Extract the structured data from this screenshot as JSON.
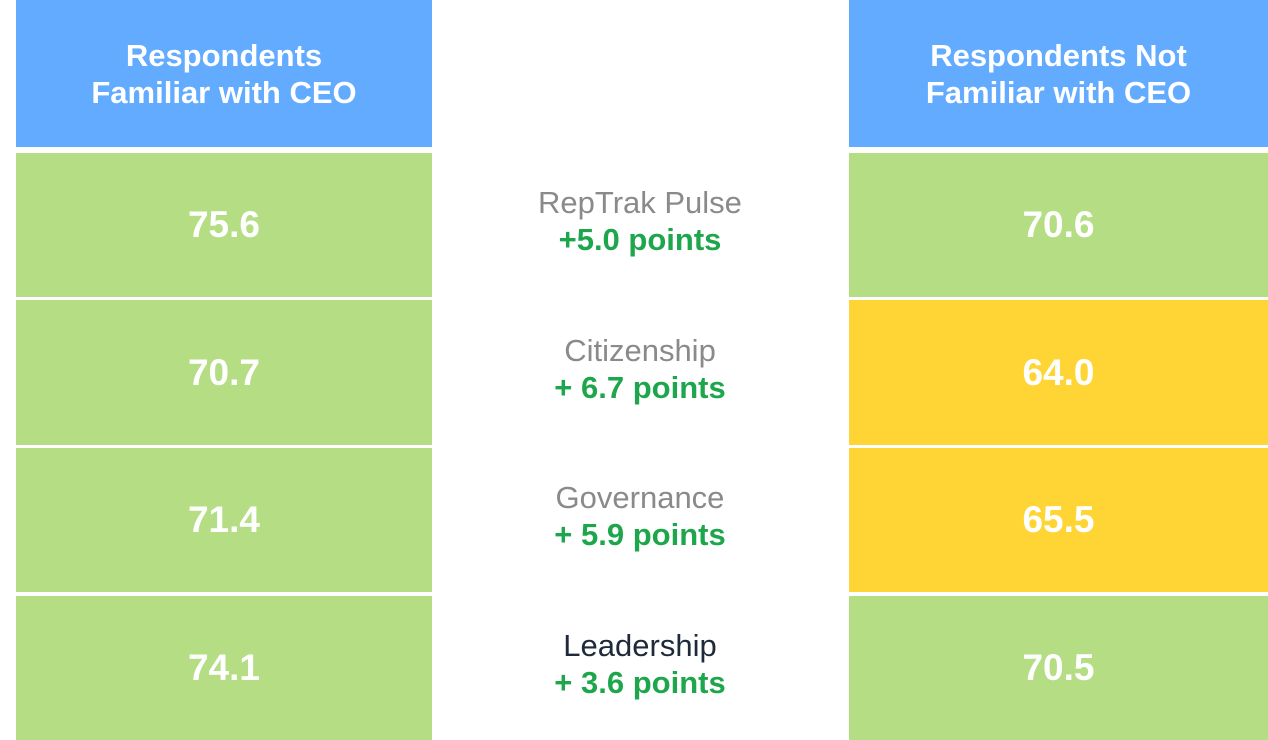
{
  "headers": {
    "left": [
      "Respondents",
      "Familiar with CEO"
    ],
    "right": [
      "Respondents Not",
      "Familiar with CEO"
    ],
    "color": "#62abff"
  },
  "rows": [
    {
      "left": "75.6",
      "left_color": "#b5de84",
      "metric": "RepTrak Pulse",
      "metric_color": "#8a8a8a",
      "change": "+5.0 points",
      "right": "70.6",
      "right_color": "#b5de84"
    },
    {
      "left": "70.7",
      "left_color": "#b5de84",
      "metric": "Citizenship",
      "metric_color": "#8a8a8a",
      "change": "+ 6.7 points",
      "right": "64.0",
      "right_color": "#ffd535"
    },
    {
      "left": "71.4",
      "left_color": "#b5de84",
      "metric": "Governance",
      "metric_color": "#8a8a8a",
      "change": "+ 5.9 points",
      "right": "65.5",
      "right_color": "#ffd535"
    },
    {
      "left": "74.1",
      "left_color": "#b5de84",
      "metric": "Leadership",
      "metric_color": "#1e2a3a",
      "change": "+ 3.6 points",
      "right": "70.5",
      "right_color": "#b5de84"
    }
  ],
  "change_color": "#1ea64c"
}
